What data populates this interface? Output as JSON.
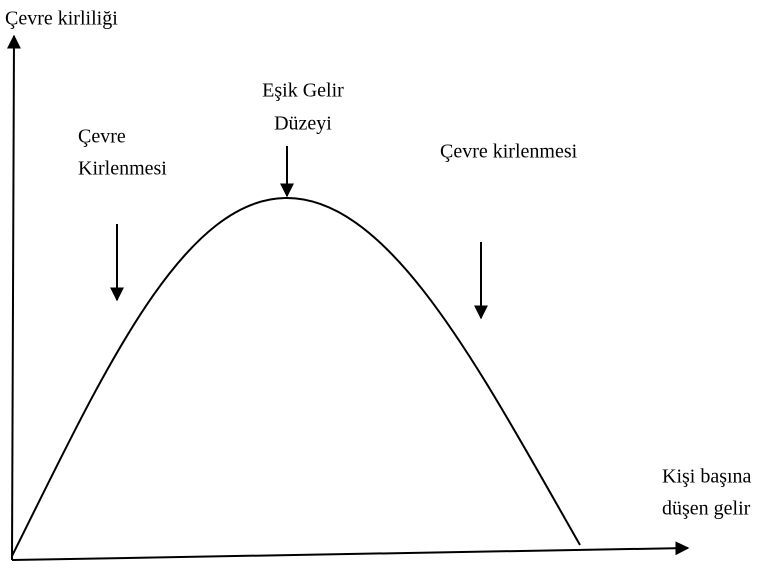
{
  "y_axis": {
    "label": "Çevre kirliliği"
  },
  "x_axis": {
    "label_lines": [
      "Kişi başına",
      "düşen gelir"
    ]
  },
  "annotations": [
    {
      "lines": [
        "Çevre",
        "Kirlenmesi"
      ]
    },
    {
      "lines": [
        "Eşik Gelir",
        "Düzeyi"
      ]
    },
    {
      "lines": [
        "Çevre kirlenmesi"
      ]
    }
  ]
}
